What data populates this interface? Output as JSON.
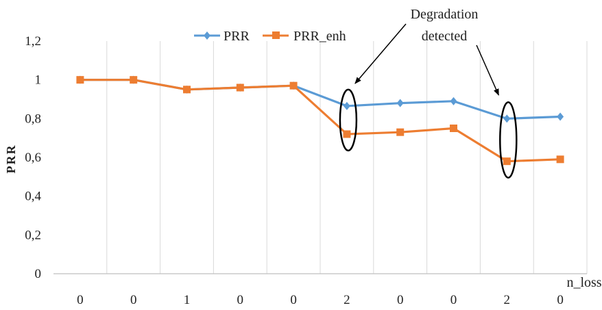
{
  "chart_data": {
    "type": "line",
    "categories": [
      "0",
      "0",
      "1",
      "0",
      "0",
      "2",
      "0",
      "0",
      "2",
      "0"
    ],
    "series": [
      {
        "name": "PRR",
        "values": [
          1.0,
          1.0,
          0.95,
          0.96,
          0.97,
          0.865,
          0.88,
          0.89,
          0.8,
          0.81
        ],
        "color": "#5B9BD5",
        "marker": "diamond"
      },
      {
        "name": "PRR_enh",
        "values": [
          1.0,
          1.0,
          0.95,
          0.96,
          0.97,
          0.72,
          0.73,
          0.75,
          0.58,
          0.59
        ],
        "color": "#ED7D31",
        "marker": "square"
      }
    ],
    "ylabel": "PRR",
    "xlabel": "n_loss",
    "ylim": [
      0,
      1.2
    ],
    "yticks": [
      "0",
      "0,2",
      "0,4",
      "0,6",
      "0,8",
      "1",
      "1,2"
    ],
    "grid": "vertical",
    "legend": "top-center",
    "annotation": {
      "lines": [
        "Degradation",
        "detected"
      ],
      "highlight_indices": [
        5,
        8
      ]
    }
  }
}
